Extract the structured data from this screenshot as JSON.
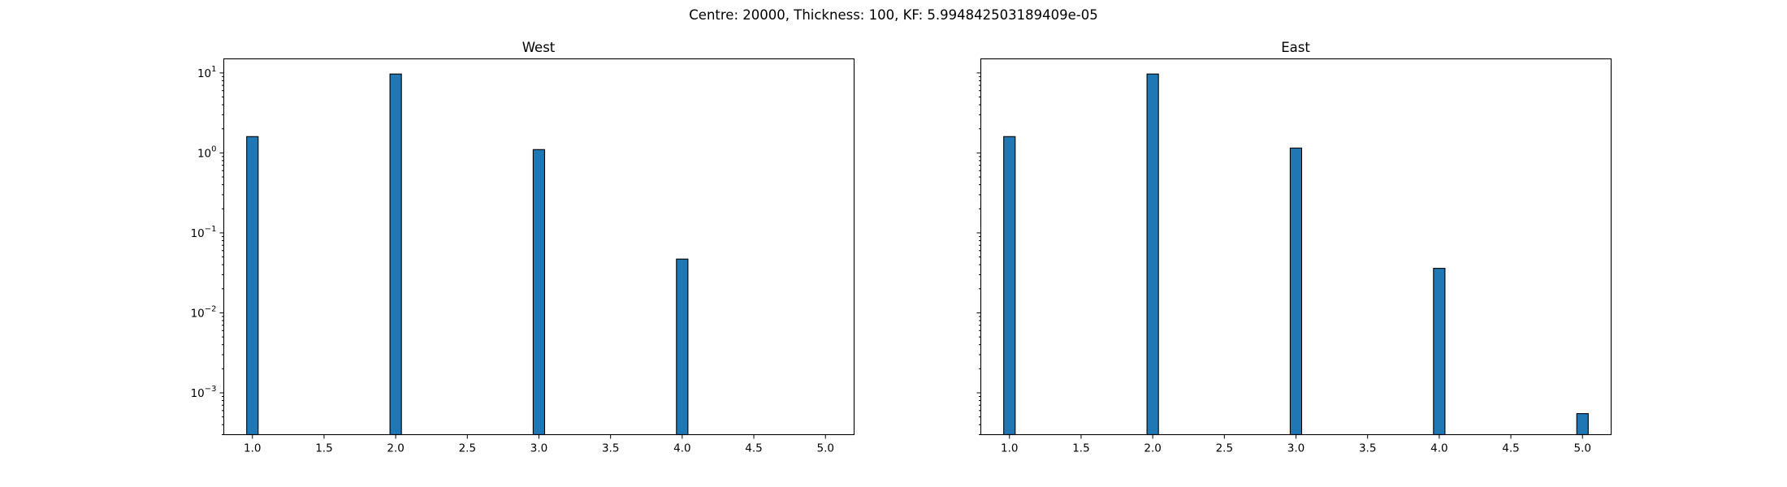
{
  "figure": {
    "suptitle": "Centre: 20000, Thickness: 100, KF: 5.994842503189409e-05"
  },
  "colors": {
    "bar_fill": "#1f77b4",
    "bar_edge": "#000000"
  },
  "chart_data": [
    {
      "type": "bar",
      "title": "West",
      "xlabel": "",
      "ylabel": "",
      "yscale": "log",
      "xlim": [
        0.8,
        5.2
      ],
      "ylim": [
        0.0003,
        15
      ],
      "x_ticks": [
        1.0,
        1.5,
        2.0,
        2.5,
        3.0,
        3.5,
        4.0,
        4.5,
        5.0
      ],
      "x_tick_labels": [
        "1.0",
        "1.5",
        "2.0",
        "2.5",
        "3.0",
        "3.5",
        "4.0",
        "4.5",
        "5.0"
      ],
      "y_ticks": [
        0.001,
        0.01,
        0.1,
        1,
        10
      ],
      "y_tick_labels": [
        {
          "base": "10",
          "exp": "−3"
        },
        {
          "base": "10",
          "exp": "−2"
        },
        {
          "base": "10",
          "exp": "−1"
        },
        {
          "base": "10",
          "exp": "0"
        },
        {
          "base": "10",
          "exp": "1"
        }
      ],
      "show_y_tick_labels": true,
      "bin_width": 0.08,
      "x": [
        1.0,
        2.0,
        3.0,
        4.0
      ],
      "values": [
        1.6,
        9.7,
        1.1,
        0.047
      ],
      "grid": false
    },
    {
      "type": "bar",
      "title": "East",
      "xlabel": "",
      "ylabel": "",
      "yscale": "log",
      "xlim": [
        0.8,
        5.2
      ],
      "ylim": [
        0.0003,
        15
      ],
      "x_ticks": [
        1.0,
        1.5,
        2.0,
        2.5,
        3.0,
        3.5,
        4.0,
        4.5,
        5.0
      ],
      "x_tick_labels": [
        "1.0",
        "1.5",
        "2.0",
        "2.5",
        "3.0",
        "3.5",
        "4.0",
        "4.5",
        "5.0"
      ],
      "y_ticks": [
        0.001,
        0.01,
        0.1,
        1,
        10
      ],
      "y_tick_labels": [],
      "show_y_tick_labels": false,
      "bin_width": 0.08,
      "x": [
        1.0,
        2.0,
        3.0,
        4.0,
        5.0
      ],
      "values": [
        1.6,
        9.7,
        1.15,
        0.036,
        0.00055
      ],
      "grid": false
    }
  ]
}
